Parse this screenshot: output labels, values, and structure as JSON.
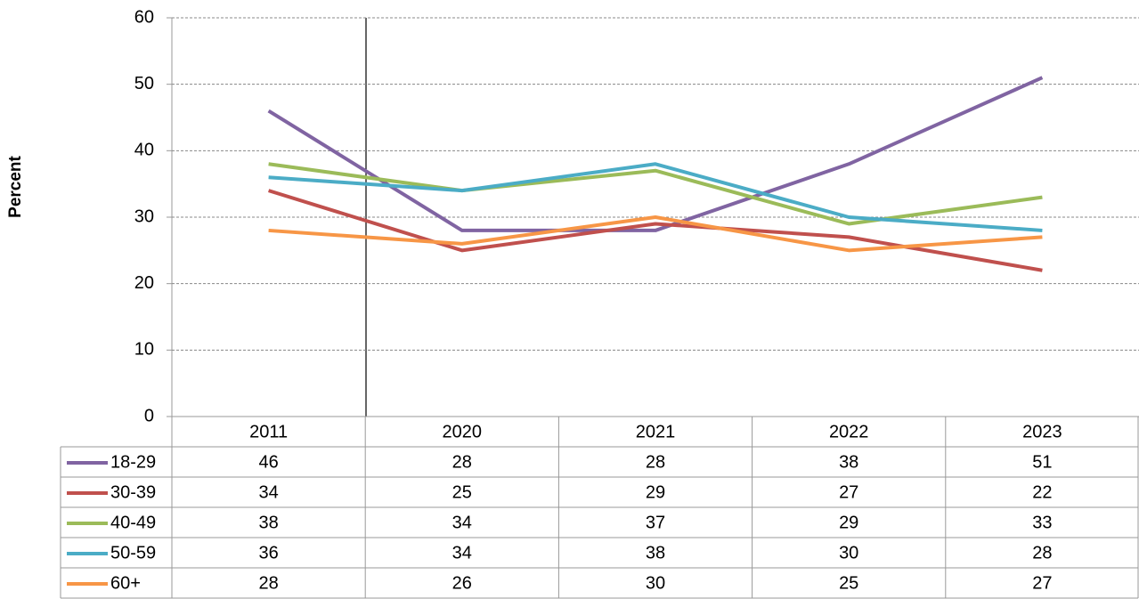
{
  "chart_data": {
    "type": "line",
    "y_label": "Percent",
    "categories": [
      "2011",
      "2020",
      "2021",
      "2022",
      "2023"
    ],
    "series": [
      {
        "name": "18-29",
        "color": "#8064a2",
        "values": [
          46,
          28,
          28,
          38,
          51
        ]
      },
      {
        "name": "30-39",
        "color": "#c0504d",
        "values": [
          34,
          25,
          29,
          27,
          22
        ]
      },
      {
        "name": "40-49",
        "color": "#9bbb59",
        "values": [
          38,
          34,
          37,
          29,
          33
        ]
      },
      {
        "name": "50-59",
        "color": "#4bacc6",
        "values": [
          36,
          34,
          38,
          30,
          28
        ]
      },
      {
        "name": "60+",
        "color": "#f79646",
        "values": [
          28,
          26,
          30,
          25,
          27
        ]
      }
    ],
    "ylim": [
      0,
      60
    ],
    "yticks": [
      0,
      10,
      20,
      30,
      40,
      50,
      60
    ],
    "grid": true
  }
}
